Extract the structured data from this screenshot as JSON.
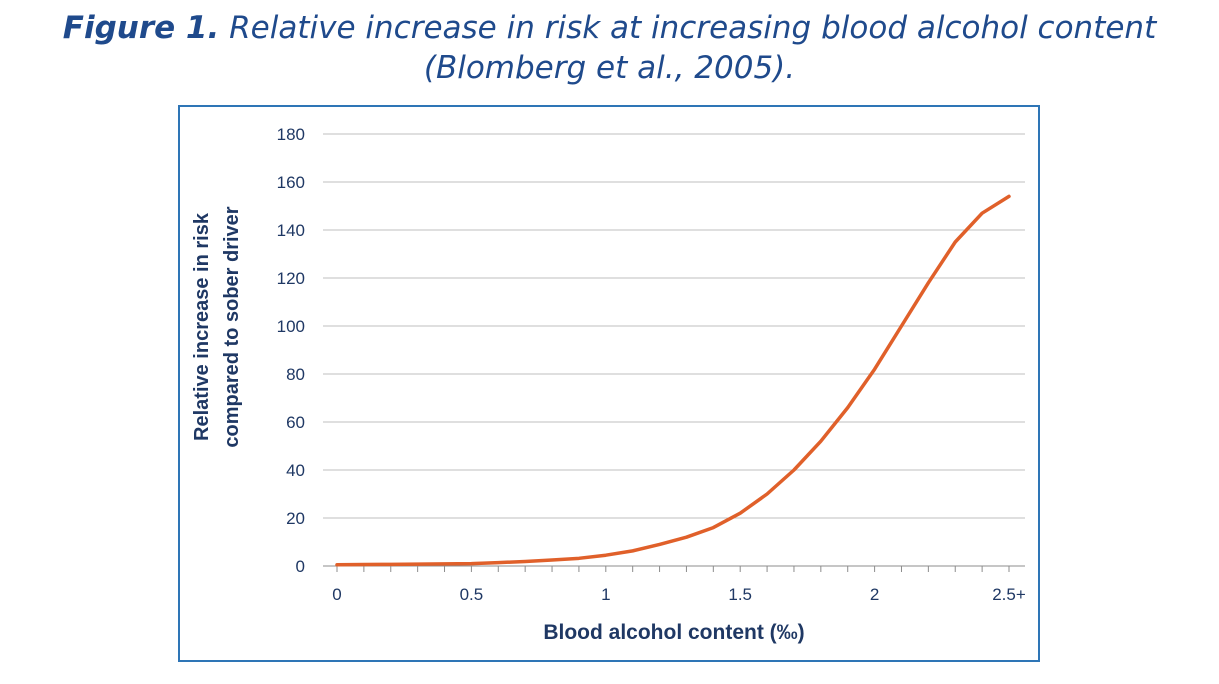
{
  "caption": {
    "label": "Figure 1.",
    "text": "Relative increase in risk at increasing blood alcohol content",
    "source": "(Blomberg et al., 2005)."
  },
  "colors": {
    "line": "#e0602a",
    "axis_text": "#1f3864",
    "frame": "#2e75b6",
    "grid": "#bfbfbf",
    "caption": "#1f4a8c"
  },
  "chart_data": {
    "type": "line",
    "title": "",
    "xlabel": "Blood alcohol content (‰)",
    "ylabel_lines": [
      "Relative increase in risk",
      "compared to sober driver"
    ],
    "ylim": [
      0,
      180
    ],
    "xlim": [
      0,
      2.5
    ],
    "grid": true,
    "x_tick_values": [
      0,
      0.5,
      1,
      1.5,
      2,
      2.5
    ],
    "x_tick_labels": [
      "0",
      "0.5",
      "1",
      "1.5",
      "2",
      "2.5+"
    ],
    "y_tick_values": [
      0,
      20,
      40,
      60,
      80,
      100,
      120,
      140,
      160,
      180
    ],
    "y_tick_labels": [
      "0",
      "20",
      "40",
      "60",
      "80",
      "100",
      "120",
      "140",
      "160",
      "180"
    ],
    "series": [
      {
        "x": [
          0,
          0.1,
          0.2,
          0.3,
          0.4,
          0.5,
          0.6,
          0.7,
          0.8,
          0.9,
          1.0,
          1.1,
          1.2,
          1.3,
          1.4,
          1.5,
          1.6,
          1.7,
          1.8,
          1.9,
          2.0,
          2.1,
          2.2,
          2.3,
          2.4,
          2.5
        ],
        "values": [
          0.5,
          0.6,
          0.7,
          0.8,
          0.9,
          1.0,
          1.4,
          1.9,
          2.5,
          3.2,
          4.5,
          6.3,
          9.0,
          12.0,
          16.0,
          22.0,
          30.0,
          40.0,
          52.0,
          66.0,
          82.0,
          100.0,
          118.0,
          135.0,
          147.0,
          154.0
        ]
      }
    ]
  }
}
